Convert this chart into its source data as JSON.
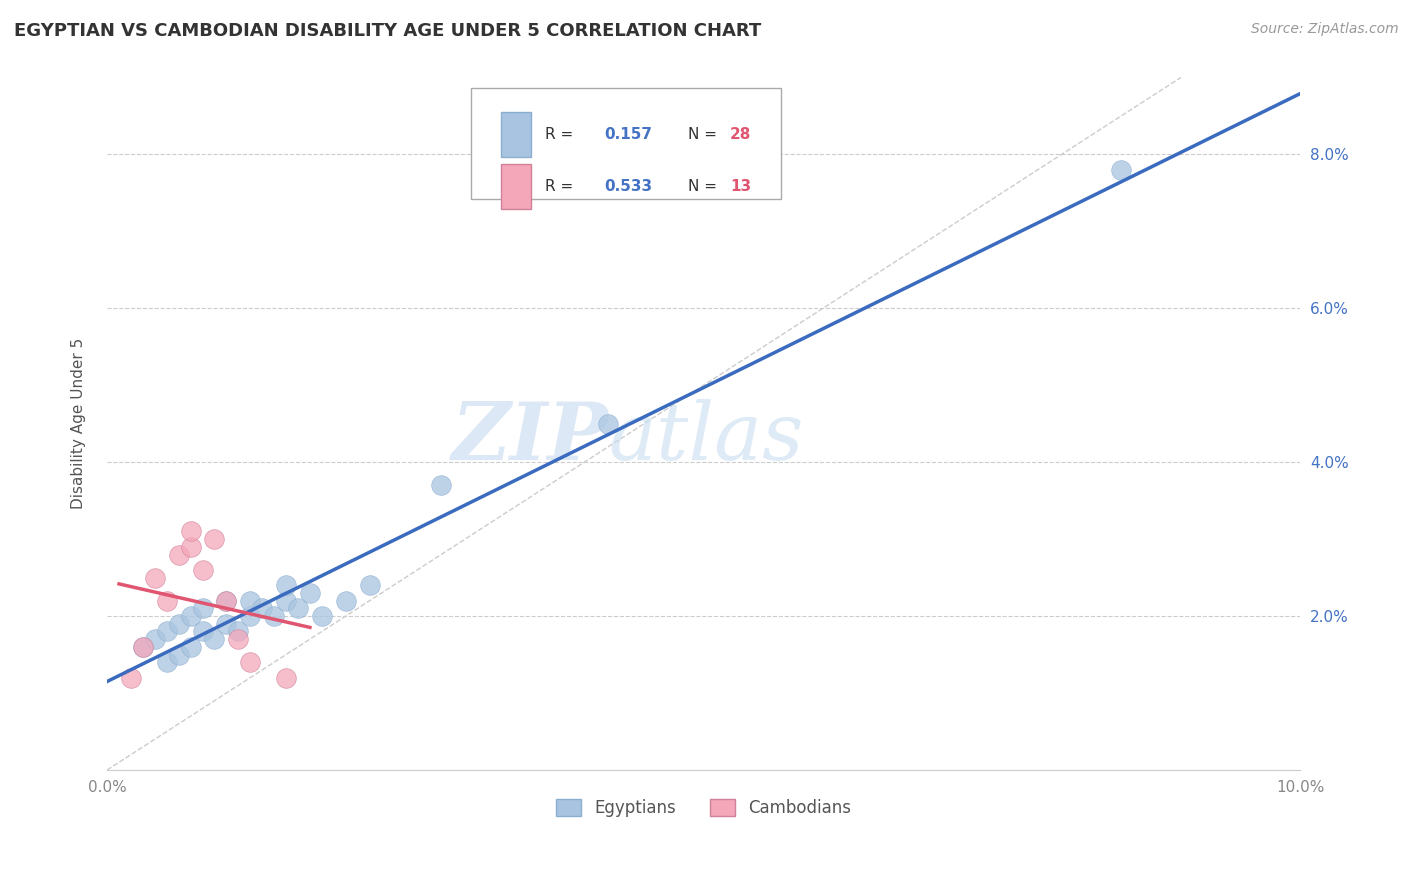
{
  "title": "EGYPTIAN VS CAMBODIAN DISABILITY AGE UNDER 5 CORRELATION CHART",
  "source": "Source: ZipAtlas.com",
  "ylabel": "Disability Age Under 5",
  "xlim": [
    0.0,
    0.1
  ],
  "ylim": [
    0.0,
    0.09
  ],
  "xticks": [
    0.0,
    0.02,
    0.04,
    0.06,
    0.08,
    0.1
  ],
  "yticks": [
    0.0,
    0.02,
    0.04,
    0.06,
    0.08
  ],
  "xtick_labels": [
    "0.0%",
    "",
    "",
    "",
    "",
    "10.0%"
  ],
  "ytick_labels_right": [
    "",
    "2.0%",
    "4.0%",
    "6.0%",
    "8.0%"
  ],
  "egyptian_color": "#a8c4e0",
  "cambodian_color": "#f4a7b9",
  "egyptian_line_color": "#3a6bbf",
  "cambodian_line_color": "#e05570",
  "R_egyptian": 0.157,
  "N_egyptian": 28,
  "R_cambodian": 0.533,
  "N_cambodian": 13,
  "watermark_zip": "ZIP",
  "watermark_atlas": "atlas",
  "legend_R_color": "#4472c4",
  "legend_N_color": "#e05570",
  "egyptian_x": [
    0.003,
    0.004,
    0.005,
    0.005,
    0.006,
    0.006,
    0.007,
    0.007,
    0.008,
    0.008,
    0.009,
    0.01,
    0.01,
    0.011,
    0.012,
    0.012,
    0.013,
    0.014,
    0.015,
    0.015,
    0.016,
    0.017,
    0.018,
    0.02,
    0.022,
    0.028,
    0.042,
    0.085
  ],
  "egyptian_y": [
    0.016,
    0.017,
    0.014,
    0.018,
    0.015,
    0.019,
    0.016,
    0.02,
    0.018,
    0.021,
    0.017,
    0.019,
    0.022,
    0.018,
    0.02,
    0.022,
    0.021,
    0.02,
    0.022,
    0.024,
    0.021,
    0.023,
    0.02,
    0.022,
    0.024,
    0.037,
    0.045,
    0.078
  ],
  "cambodian_x": [
    0.002,
    0.003,
    0.004,
    0.005,
    0.006,
    0.007,
    0.007,
    0.008,
    0.009,
    0.01,
    0.011,
    0.012,
    0.015
  ],
  "cambodian_y": [
    0.012,
    0.016,
    0.025,
    0.022,
    0.028,
    0.029,
    0.031,
    0.026,
    0.03,
    0.022,
    0.017,
    0.014,
    0.012
  ],
  "diagonal_line_x": [
    0.0,
    0.09
  ],
  "diagonal_line_y": [
    0.0,
    0.09
  ]
}
